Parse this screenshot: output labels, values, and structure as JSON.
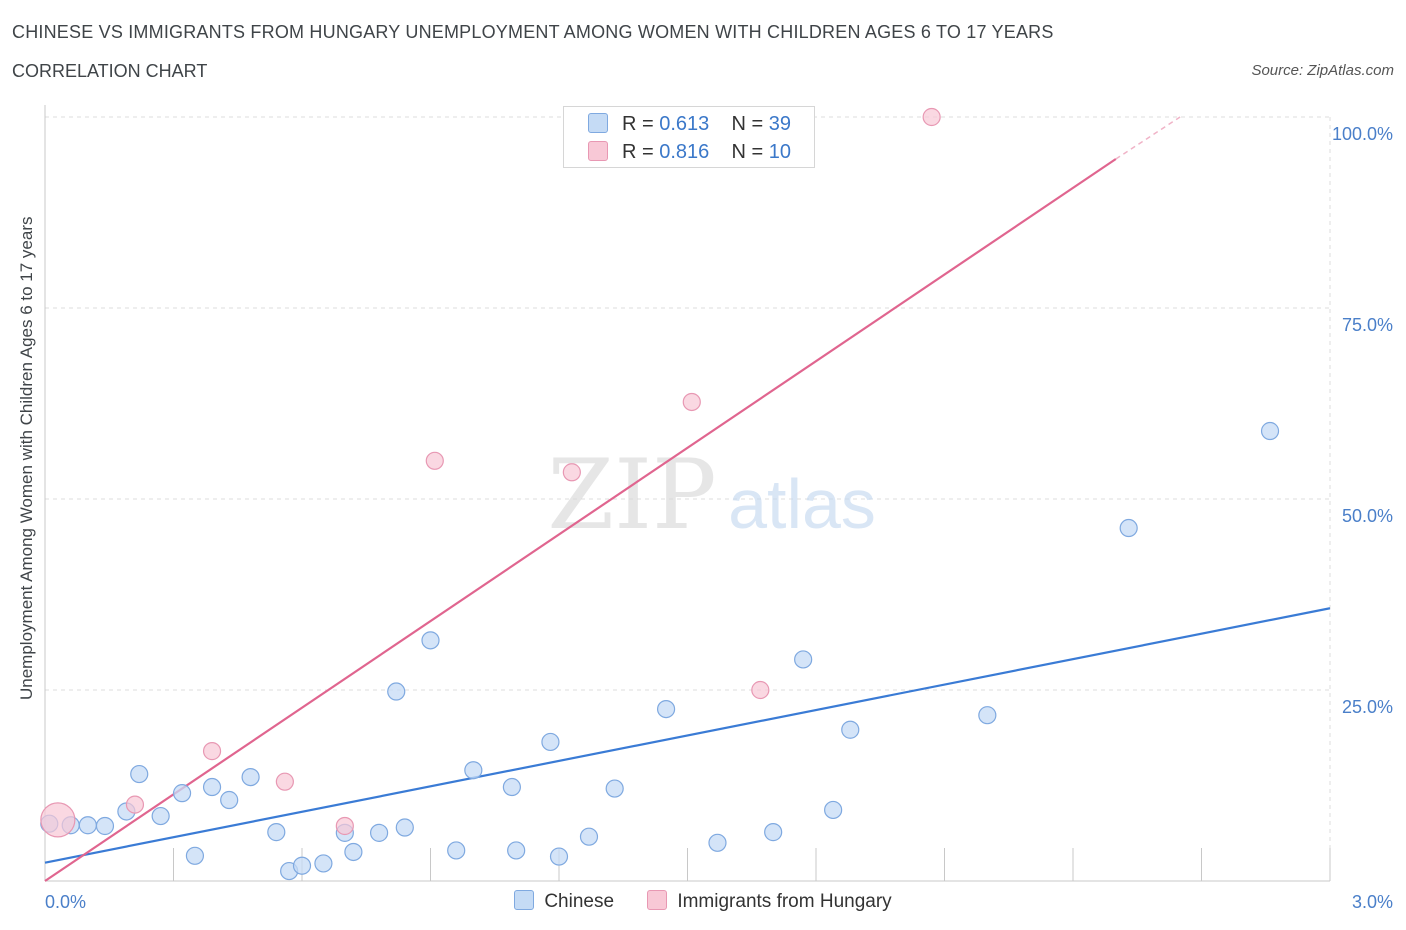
{
  "header": {
    "title": "CHINESE VS IMMIGRANTS FROM HUNGARY UNEMPLOYMENT AMONG WOMEN WITH CHILDREN AGES 6 TO 17 YEARS",
    "subtitle": "CORRELATION CHART",
    "source": "Source: ZipAtlas.com"
  },
  "watermark": {
    "zip": "ZIP",
    "atlas": "atlas"
  },
  "legend_top": {
    "rows": [
      {
        "r_label": "R =",
        "r_value": "0.613",
        "n_label": "N =",
        "n_value": "39"
      },
      {
        "r_label": "R =",
        "r_value": "0.816",
        "n_label": "N =",
        "n_value": "10"
      }
    ]
  },
  "legend_bottom": {
    "items": [
      "Chinese",
      "Immigrants from Hungary"
    ]
  },
  "chart_data": {
    "type": "scatter",
    "title": "CHINESE VS IMMIGRANTS FROM HUNGARY UNEMPLOYMENT AMONG WOMEN WITH CHILDREN AGES 6 TO 17 YEARS",
    "subtitle": "CORRELATION CHART",
    "xlabel": "",
    "ylabel": "Unemployment Among Women with Children Ages 6 to 17 years",
    "xlim": [
      0,
      3.0
    ],
    "ylim": [
      0,
      100
    ],
    "x_tick_labels": [
      "0.0%",
      "3.0%"
    ],
    "y_tick_labels": [
      "100.0%",
      "75.0%",
      "50.0%",
      "25.0%"
    ],
    "y_ticks": [
      100,
      75,
      50,
      25
    ],
    "grid": true,
    "colors": {
      "blue": "#3a7bd5",
      "blue_fill": "#c5dbf5",
      "pink": "#e0658f",
      "pink_fill": "#f8c8d6",
      "axis_label": "#4a7fc9"
    },
    "series": [
      {
        "name": "Chinese",
        "color": "#3a7bd5",
        "points": [
          [
            0.01,
            7.5
          ],
          [
            0.06,
            7.3
          ],
          [
            0.1,
            7.3
          ],
          [
            0.14,
            7.2
          ],
          [
            0.19,
            9.1
          ],
          [
            0.22,
            14.0
          ],
          [
            0.27,
            8.5
          ],
          [
            0.32,
            11.5
          ],
          [
            0.35,
            3.3
          ],
          [
            0.39,
            12.3
          ],
          [
            0.43,
            10.6
          ],
          [
            0.48,
            13.6
          ],
          [
            0.54,
            6.4
          ],
          [
            0.57,
            1.3
          ],
          [
            0.6,
            2.0
          ],
          [
            0.65,
            2.3
          ],
          [
            0.7,
            6.3
          ],
          [
            0.72,
            3.8
          ],
          [
            0.78,
            6.3
          ],
          [
            0.82,
            24.8
          ],
          [
            0.84,
            7.0
          ],
          [
            0.9,
            31.5
          ],
          [
            0.96,
            4.0
          ],
          [
            1.0,
            14.5
          ],
          [
            1.09,
            12.3
          ],
          [
            1.1,
            4.0
          ],
          [
            1.18,
            18.2
          ],
          [
            1.2,
            3.2
          ],
          [
            1.27,
            5.8
          ],
          [
            1.33,
            12.1
          ],
          [
            1.45,
            22.5
          ],
          [
            1.57,
            5.0
          ],
          [
            1.7,
            6.4
          ],
          [
            1.77,
            29.0
          ],
          [
            1.84,
            9.3
          ],
          [
            1.88,
            19.8
          ],
          [
            2.2,
            21.7
          ],
          [
            2.53,
            46.2
          ],
          [
            2.86,
            58.9
          ]
        ],
        "trend": {
          "x": [
            0.0,
            3.0
          ],
          "y": [
            2.4,
            35.7
          ]
        }
      },
      {
        "name": "Immigrants from Hungary",
        "color": "#e0658f",
        "points": [
          [
            0.03,
            8.0
          ],
          [
            0.21,
            10.0
          ],
          [
            0.39,
            17.0
          ],
          [
            0.56,
            13.0
          ],
          [
            0.7,
            7.2
          ],
          [
            0.91,
            55.0
          ],
          [
            1.23,
            53.5
          ],
          [
            1.51,
            62.7
          ],
          [
            1.67,
            25.0
          ],
          [
            2.07,
            100.0
          ]
        ],
        "trend": {
          "x": [
            0.0,
            2.5
          ],
          "y": [
            0.0,
            94.5
          ],
          "dashed_to": [
            2.65,
            100.0
          ]
        }
      }
    ]
  }
}
